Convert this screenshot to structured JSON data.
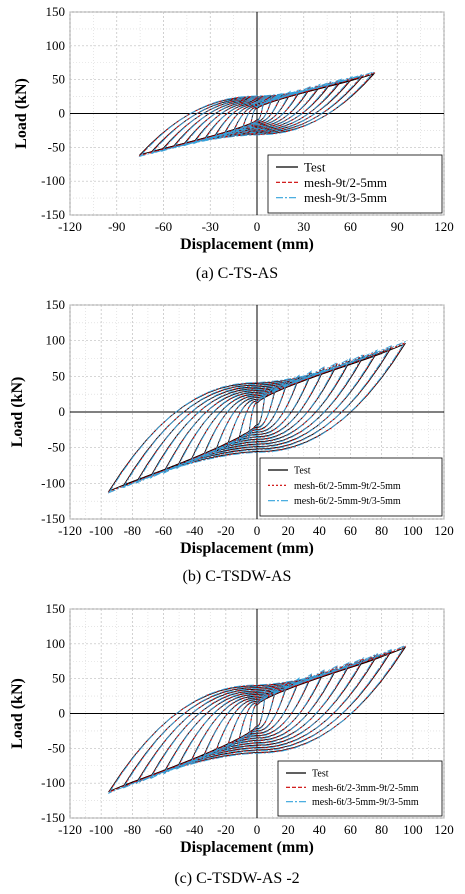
{
  "chart_data": [
    {
      "type": "line",
      "caption": "(a) C-TS-AS",
      "xlabel": "Displacement (mm)",
      "ylabel": "Load (kN)",
      "xlim": [
        -120,
        120
      ],
      "ylim": [
        -150,
        150
      ],
      "xticks": [
        -120,
        -90,
        -60,
        -30,
        0,
        30,
        60,
        90,
        120
      ],
      "yticks": [
        -150,
        -100,
        -50,
        0,
        50,
        100,
        150
      ],
      "grid": true,
      "legend_position": "bottom-right",
      "max_disp": 75,
      "max_load": 60,
      "min_disp": -75,
      "min_load": -62,
      "series": [
        {
          "name": "Test",
          "color": "#000000",
          "dash": "none"
        },
        {
          "name": "mesh-9t/2-5mm",
          "color": "#cc0000",
          "dash": "4,2"
        },
        {
          "name": "mesh-9t/3-5mm",
          "color": "#33a3dc",
          "dash": "7,2,2,2"
        }
      ]
    },
    {
      "type": "line",
      "caption": "(b) C-TSDW-AS",
      "xlabel": "Displacement (mm)",
      "ylabel": "Load (kN)",
      "xlim": [
        -120,
        120
      ],
      "ylim": [
        -150,
        150
      ],
      "xticks": [
        -120,
        -100,
        -80,
        -60,
        -40,
        -20,
        0,
        20,
        40,
        60,
        80,
        100,
        120
      ],
      "yticks": [
        -150,
        -100,
        -50,
        0,
        50,
        100,
        150
      ],
      "grid": true,
      "legend_position": "bottom-right",
      "max_disp": 95,
      "max_load": 97,
      "min_disp": -95,
      "min_load": -112,
      "series": [
        {
          "name": "Test",
          "color": "#000000",
          "dash": "none"
        },
        {
          "name": "mesh-6t/2-5mm-9t/2-5mm",
          "color": "#cc0000",
          "dash": "2,2"
        },
        {
          "name": "mesh-6t/2-5mm-9t/3-5mm",
          "color": "#33a3dc",
          "dash": "7,2,2,2"
        }
      ]
    },
    {
      "type": "line",
      "caption": "(c) C-TSDW-AS -2",
      "xlabel": "Displacement (mm)",
      "ylabel": "Load (kN)",
      "xlim": [
        -120,
        120
      ],
      "ylim": [
        -150,
        150
      ],
      "xticks": [
        -120,
        -100,
        -80,
        -60,
        -40,
        -20,
        0,
        20,
        40,
        60,
        80,
        100,
        120
      ],
      "yticks": [
        -150,
        -100,
        -50,
        0,
        50,
        100,
        150
      ],
      "grid": true,
      "legend_position": "bottom-right",
      "max_disp": 95,
      "max_load": 96,
      "min_disp": -95,
      "min_load": -113,
      "series": [
        {
          "name": "Test",
          "color": "#000000",
          "dash": "none"
        },
        {
          "name": "mesh-6t/2-3mm-9t/2-5mm",
          "color": "#cc0000",
          "dash": "4,2"
        },
        {
          "name": "mesh-6t/3-5mm-9t/3-5mm",
          "color": "#33a3dc",
          "dash": "7,2,2,2"
        }
      ]
    }
  ]
}
